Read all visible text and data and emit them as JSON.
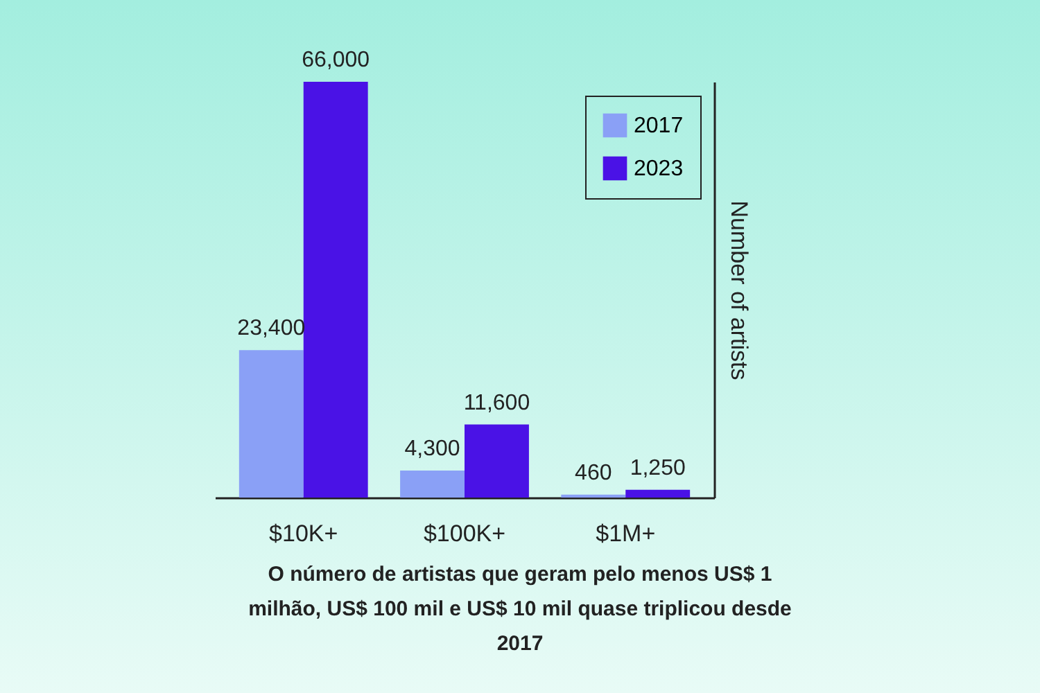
{
  "chart_data": {
    "type": "bar",
    "categories": [
      "$10K+",
      "$100K+",
      "$1M+"
    ],
    "series": [
      {
        "name": "2017",
        "color": "#8aa0f6",
        "values": [
          23400,
          4300,
          460
        ],
        "value_labels": [
          "23,400",
          "4,300",
          "460"
        ]
      },
      {
        "name": "2023",
        "color": "#4a12e6",
        "values": [
          66000,
          11600,
          1250
        ],
        "value_labels": [
          "66,000",
          "11,600",
          "1,250"
        ]
      }
    ],
    "ylabel": "Number of artists",
    "tick_labels": "x",
    "legend": "top right",
    "grid": false,
    "annotations": [
      "O número de artistas que geram pelo menos US$ 1 milhão, US$ 100 mil e US$ 10 mil quase triplicou desde 2017"
    ]
  }
}
